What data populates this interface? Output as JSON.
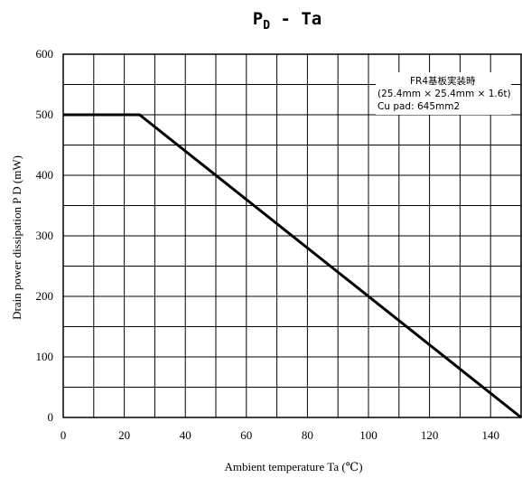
{
  "chart_data": {
    "type": "line",
    "title": {
      "main": "P",
      "sub": "D",
      "rest": " - Ta"
    },
    "xlabel": "Ambient temperature  Ta (℃)",
    "ylabel": "Drain power dissipation   P  D  (mW)",
    "xlim": [
      0,
      150
    ],
    "ylim": [
      0,
      600
    ],
    "xticks": [
      0,
      20,
      40,
      60,
      80,
      100,
      120,
      140
    ],
    "yticks": [
      0,
      100,
      200,
      300,
      400,
      500,
      600
    ],
    "grid": true,
    "series": [
      {
        "x": [
          0,
          25,
          150
        ],
        "y": [
          500,
          500,
          0
        ]
      }
    ],
    "annotation": {
      "lines": [
        "FR4基板実装時",
        "(25.4mm × 25.4mm × 1.6t)",
        "Cu pad: 645mm2"
      ]
    }
  }
}
